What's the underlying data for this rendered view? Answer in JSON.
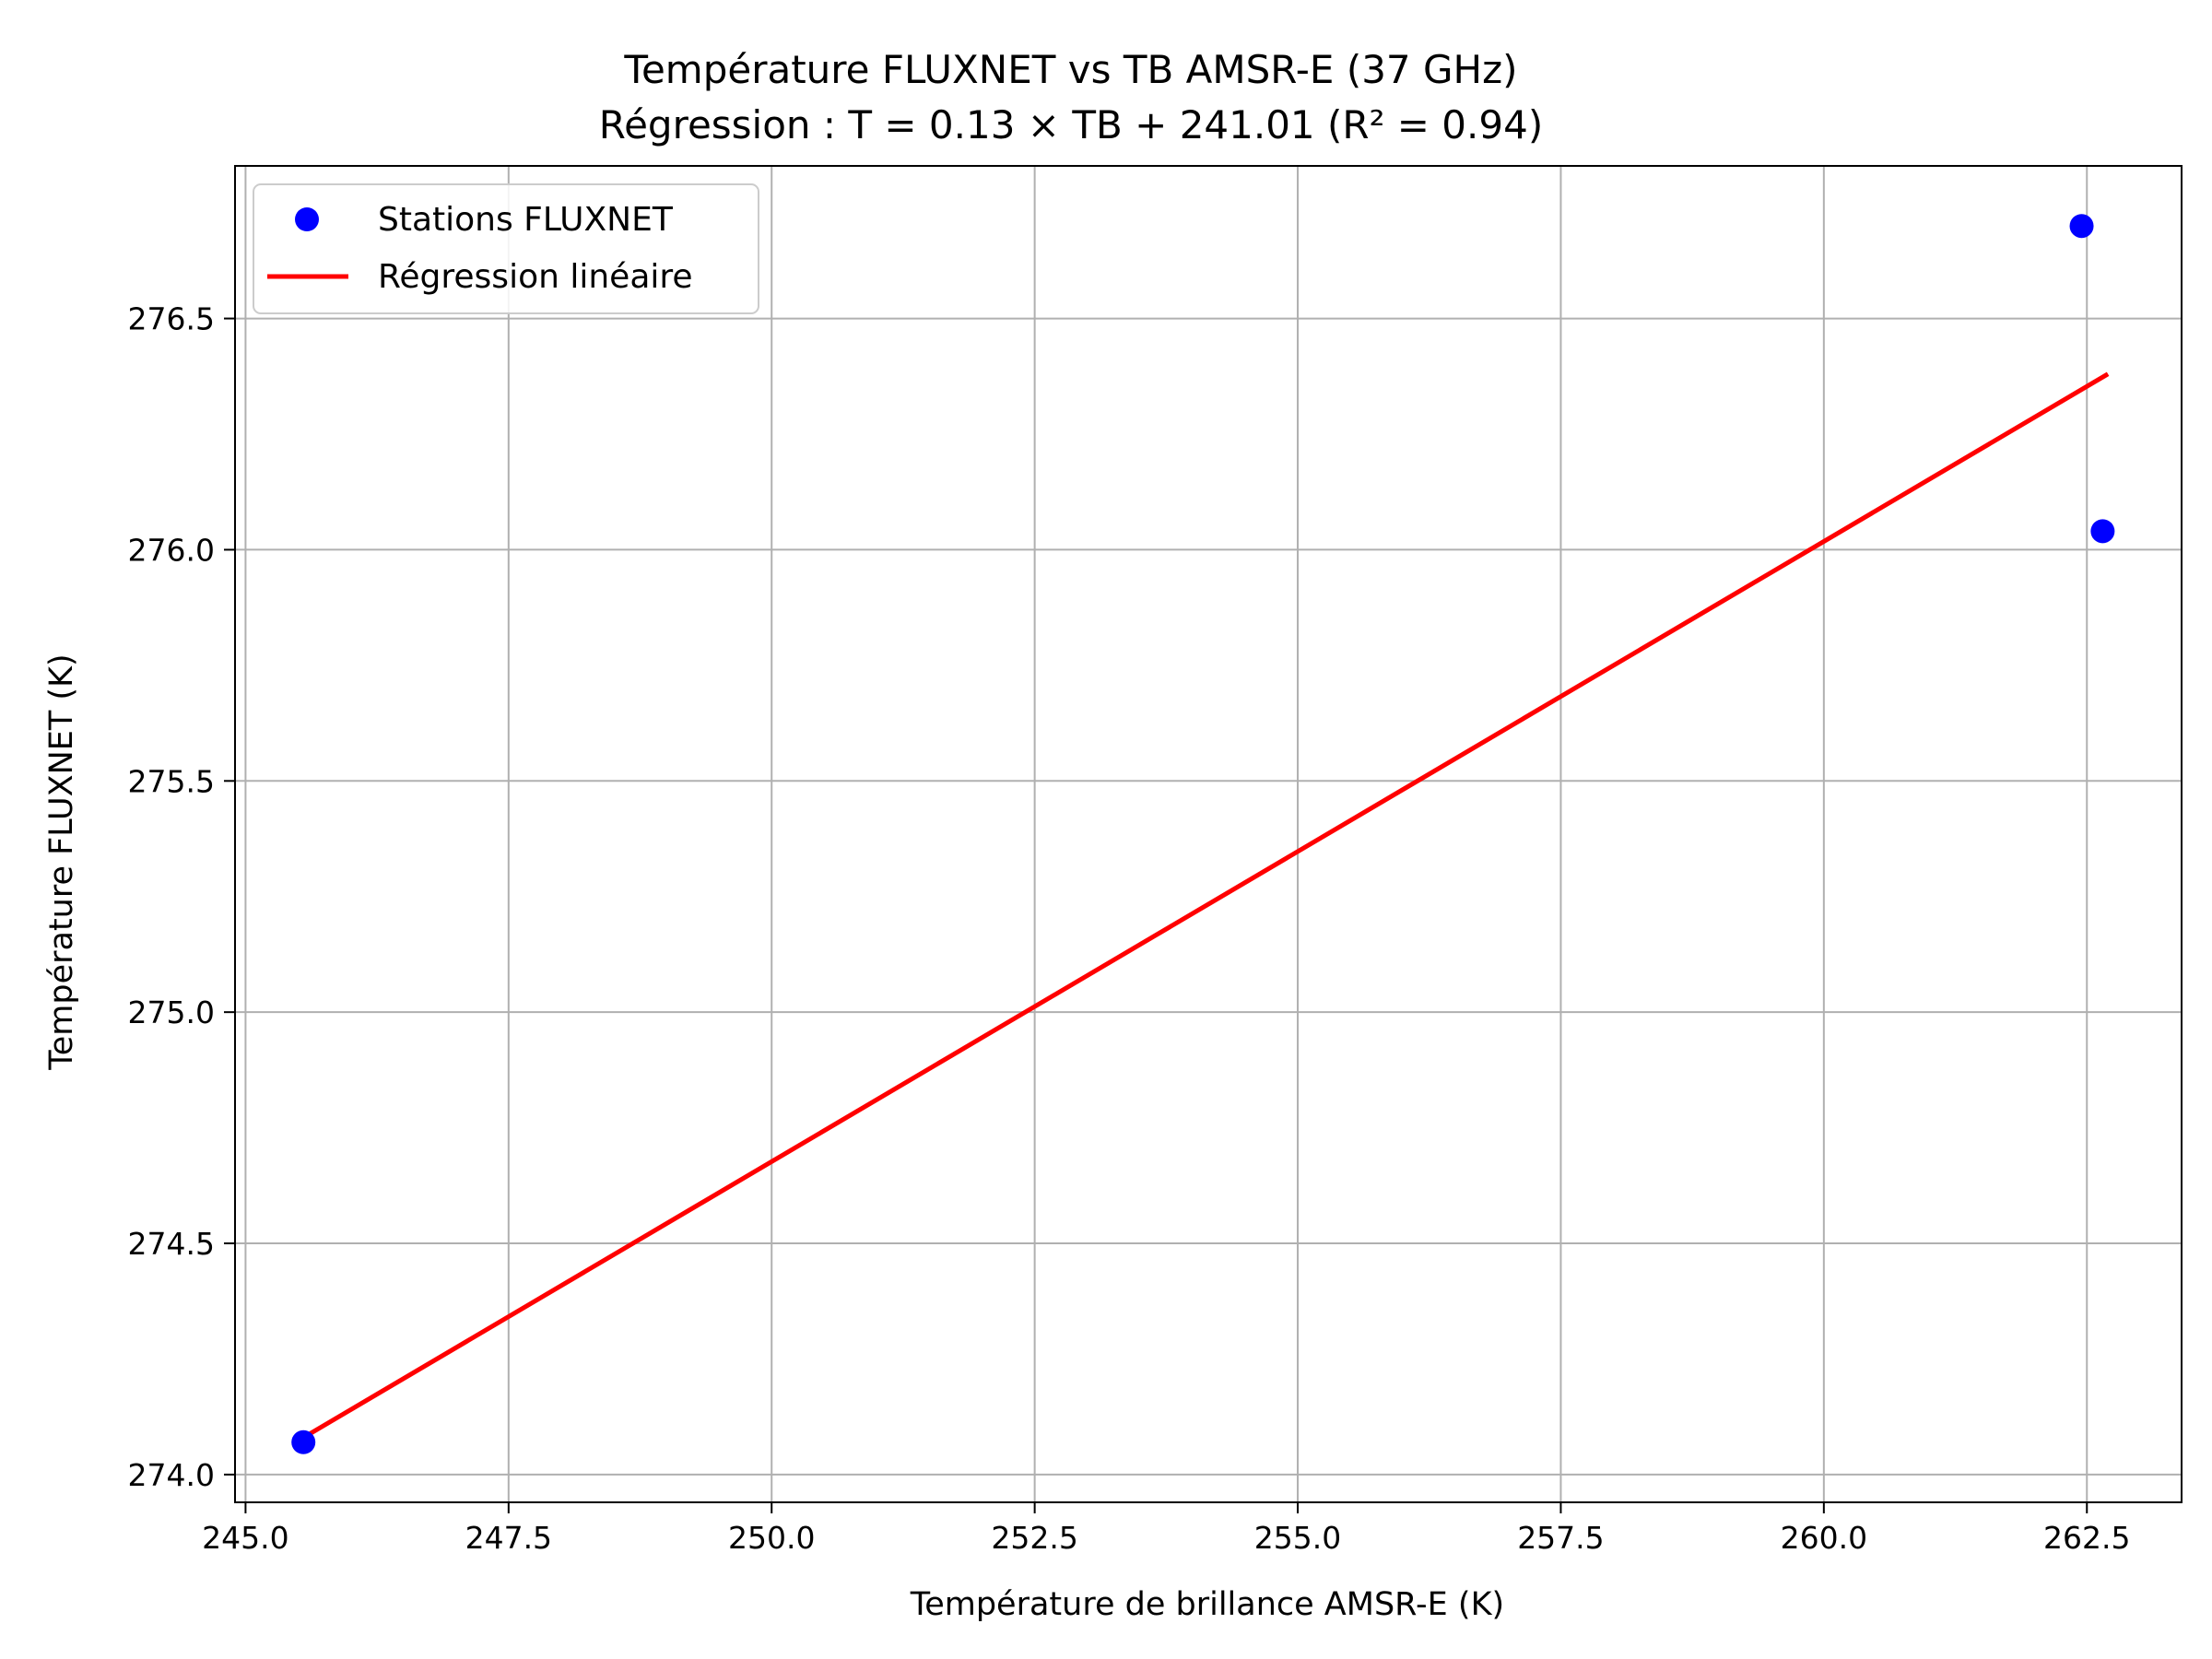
{
  "chart_data": {
    "type": "scatter",
    "title": "Température FLUXNET vs TB AMSR-E (37 GHz)",
    "subtitle": "Régression : T = 0.13 × TB + 241.01 (R² = 0.94)",
    "xlabel": "Température de brillance AMSR-E (K)",
    "ylabel": "Température FLUXNET (K)",
    "xlim": [
      244.9,
      263.4
    ],
    "ylim": [
      273.94,
      276.83
    ],
    "x_ticks": [
      245.0,
      247.5,
      250.0,
      252.5,
      255.0,
      257.5,
      260.0,
      262.5
    ],
    "x_tick_labels": [
      "245.0",
      "247.5",
      "250.0",
      "252.5",
      "255.0",
      "257.5",
      "260.0",
      "262.5"
    ],
    "y_ticks": [
      274.0,
      274.5,
      275.0,
      275.5,
      276.0,
      276.5
    ],
    "y_tick_labels": [
      "274.0",
      "274.5",
      "275.0",
      "275.5",
      "276.0",
      "276.5"
    ],
    "grid": true,
    "legend_position": "top-left",
    "series": [
      {
        "name": "Stations FLUXNET",
        "kind": "scatter",
        "color": "#0000ff",
        "points": [
          {
            "x": 245.55,
            "y": 274.07
          },
          {
            "x": 262.45,
            "y": 276.7
          },
          {
            "x": 262.65,
            "y": 276.04
          }
        ]
      },
      {
        "name": "Régression linéaire",
        "kind": "line",
        "color": "#ff0000",
        "points": [
          {
            "x": 245.55,
            "y": 274.08
          },
          {
            "x": 262.7,
            "y": 276.38
          }
        ]
      }
    ]
  }
}
